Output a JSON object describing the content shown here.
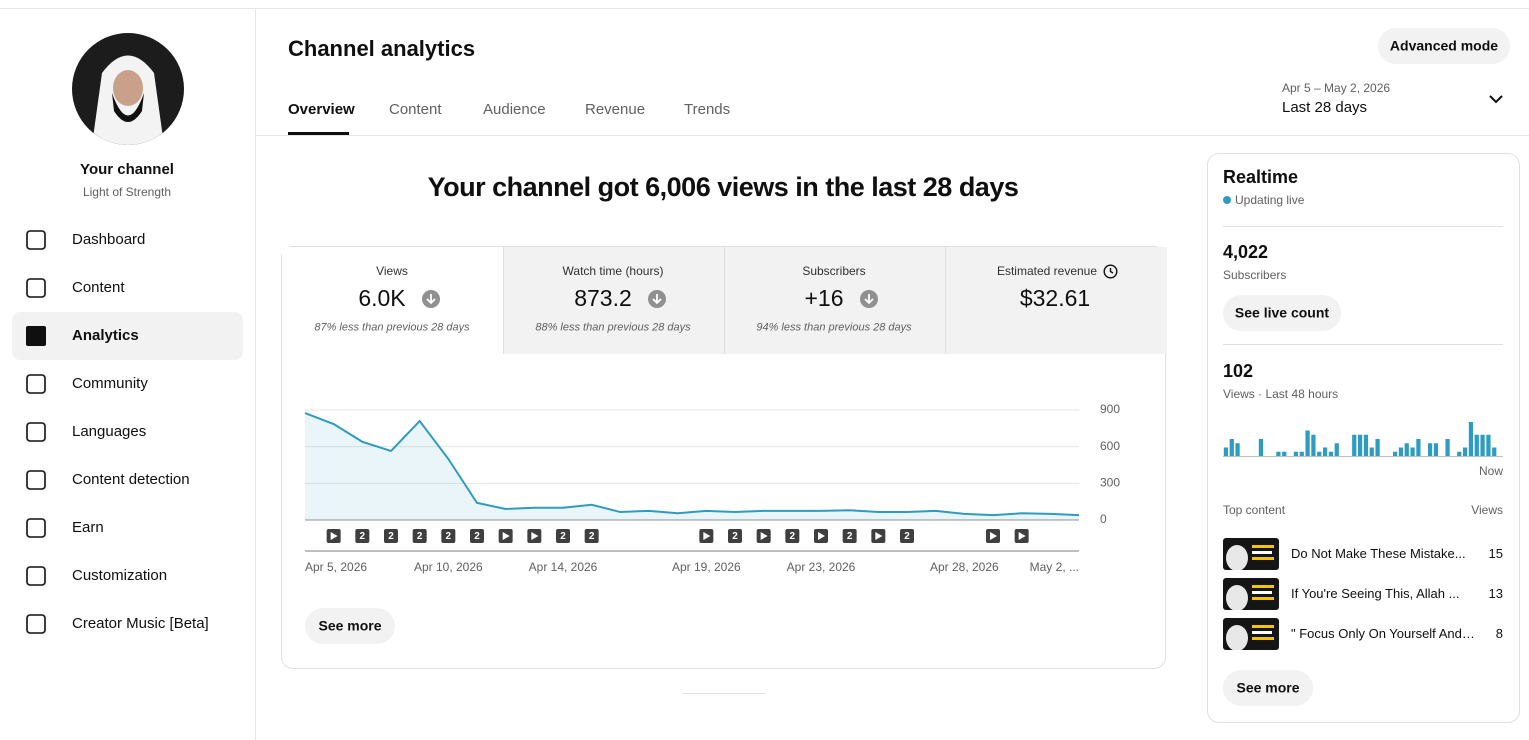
{
  "sidebar": {
    "channel_label": "Your channel",
    "channel_name": "Light of Strength",
    "nav": [
      {
        "label": "Dashboard"
      },
      {
        "label": "Content"
      },
      {
        "label": "Analytics",
        "selected": true
      },
      {
        "label": "Community"
      },
      {
        "label": "Languages"
      },
      {
        "label": "Content detection"
      },
      {
        "label": "Earn"
      },
      {
        "label": "Customization"
      },
      {
        "label": "Creator Music [Beta]"
      }
    ]
  },
  "header": {
    "title": "Channel analytics",
    "tabs": [
      {
        "label": "Overview",
        "selected": true
      },
      {
        "label": "Content"
      },
      {
        "label": "Audience"
      },
      {
        "label": "Revenue"
      },
      {
        "label": "Trends"
      }
    ],
    "advanced_mode": "Advanced mode",
    "date_range": "Apr 5 – May 2, 2026",
    "period": "Last 28 days"
  },
  "headline": "Your channel got 6,006 views in the last 28 days",
  "metrics": [
    {
      "label": "Views",
      "value": "6.0K",
      "change": "87% less than previous 28 days",
      "selected": true
    },
    {
      "label": "Watch time (hours)",
      "value": "873.2",
      "change": "88% less than previous 28 days"
    },
    {
      "label": "Subscribers",
      "value": "+16",
      "change": "94% less than previous 28 days"
    },
    {
      "label": "Estimated revenue",
      "value": "$32.61"
    }
  ],
  "chart_data": {
    "type": "line",
    "categories": [
      "Apr 5, 2026",
      null,
      null,
      null,
      null,
      "Apr 10, 2026",
      null,
      null,
      null,
      "Apr 14, 2026",
      null,
      null,
      null,
      null,
      "Apr 19, 2026",
      null,
      null,
      null,
      "Apr 23, 2026",
      null,
      null,
      null,
      null,
      "Apr 28, 2026",
      null,
      null,
      null,
      "May 2, ..."
    ],
    "values": [
      875,
      785,
      640,
      565,
      810,
      500,
      140,
      90,
      100,
      100,
      125,
      65,
      75,
      55,
      75,
      65,
      75,
      75,
      75,
      80,
      65,
      65,
      75,
      50,
      40,
      55,
      50,
      40
    ],
    "color": "#2e9cc0",
    "ylim": [
      0,
      900
    ],
    "yticks": [
      0,
      300,
      600,
      900
    ],
    "grid": true,
    "markers": [
      null,
      {
        "icon": "play"
      },
      {
        "label": "2"
      },
      {
        "label": "2"
      },
      {
        "label": "2"
      },
      {
        "label": "2"
      },
      {
        "label": "2"
      },
      {
        "icon": "play"
      },
      {
        "icon": "play"
      },
      {
        "label": "2"
      },
      {
        "label": "2"
      },
      null,
      null,
      null,
      {
        "icon": "play"
      },
      {
        "label": "2"
      },
      {
        "icon": "play"
      },
      {
        "label": "2"
      },
      {
        "icon": "play"
      },
      {
        "label": "2"
      },
      {
        "icon": "play"
      },
      {
        "label": "2"
      },
      null,
      null,
      {
        "icon": "play"
      },
      {
        "icon": "play"
      },
      null,
      null
    ]
  },
  "see_more": "See more",
  "realtime": {
    "title": "Realtime",
    "status": "Updating live",
    "subscribers": "4,022",
    "subscribers_label": "Subscribers",
    "live_count_button": "See live count",
    "views": "102",
    "views_label": "Views · Last 48 hours",
    "chart_data": {
      "type": "bar",
      "color": "#2e9cc0",
      "values": [
        2,
        4,
        3,
        0,
        0,
        0,
        4,
        0,
        0,
        1,
        1,
        0,
        1,
        1,
        6,
        5,
        1,
        2,
        1,
        3,
        0,
        0,
        5,
        5,
        5,
        2,
        4,
        0,
        0,
        1,
        2,
        3,
        2,
        4,
        0,
        3,
        3,
        0,
        4,
        0,
        1,
        2,
        8,
        5,
        5,
        5,
        2,
        0
      ],
      "x_label": "Now"
    },
    "top_content_label": "Top content",
    "top_content_views_label": "Views",
    "top_content": [
      {
        "title": "Do Not Make These Mistake...",
        "views": "15"
      },
      {
        "title": "If You're Seeing This, Allah ...",
        "views": "13"
      },
      {
        "title": "\" Focus Only On Yourself And ...",
        "views": "8"
      }
    ],
    "see_more": "See more"
  }
}
